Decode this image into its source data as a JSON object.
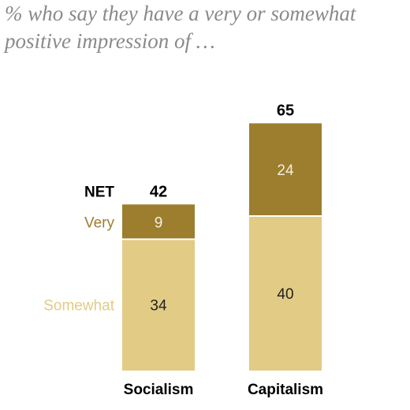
{
  "subtitle": "% who say they have a very or somewhat positive impression of …",
  "colors": {
    "very": "#9c7e2e",
    "somewhat": "#e2cb84",
    "net_text": "#000000",
    "segment_text_dark": "#222222",
    "segment_text_light": "#f4eedc"
  },
  "legend": {
    "net": "NET",
    "very": "Very",
    "somewhat": "Somewhat"
  },
  "chart_data": {
    "type": "bar",
    "stacked": true,
    "categories": [
      "Socialism",
      "Capitalism"
    ],
    "series": [
      {
        "name": "Somewhat",
        "values": [
          34,
          40
        ]
      },
      {
        "name": "Very",
        "values": [
          9,
          24
        ]
      }
    ],
    "net": [
      42,
      65
    ],
    "net_label": "NET",
    "title": "",
    "subtitle": "% who say they have a very or somewhat positive impression of …",
    "xlabel": "",
    "ylabel": "",
    "ylim": [
      0,
      65
    ]
  }
}
